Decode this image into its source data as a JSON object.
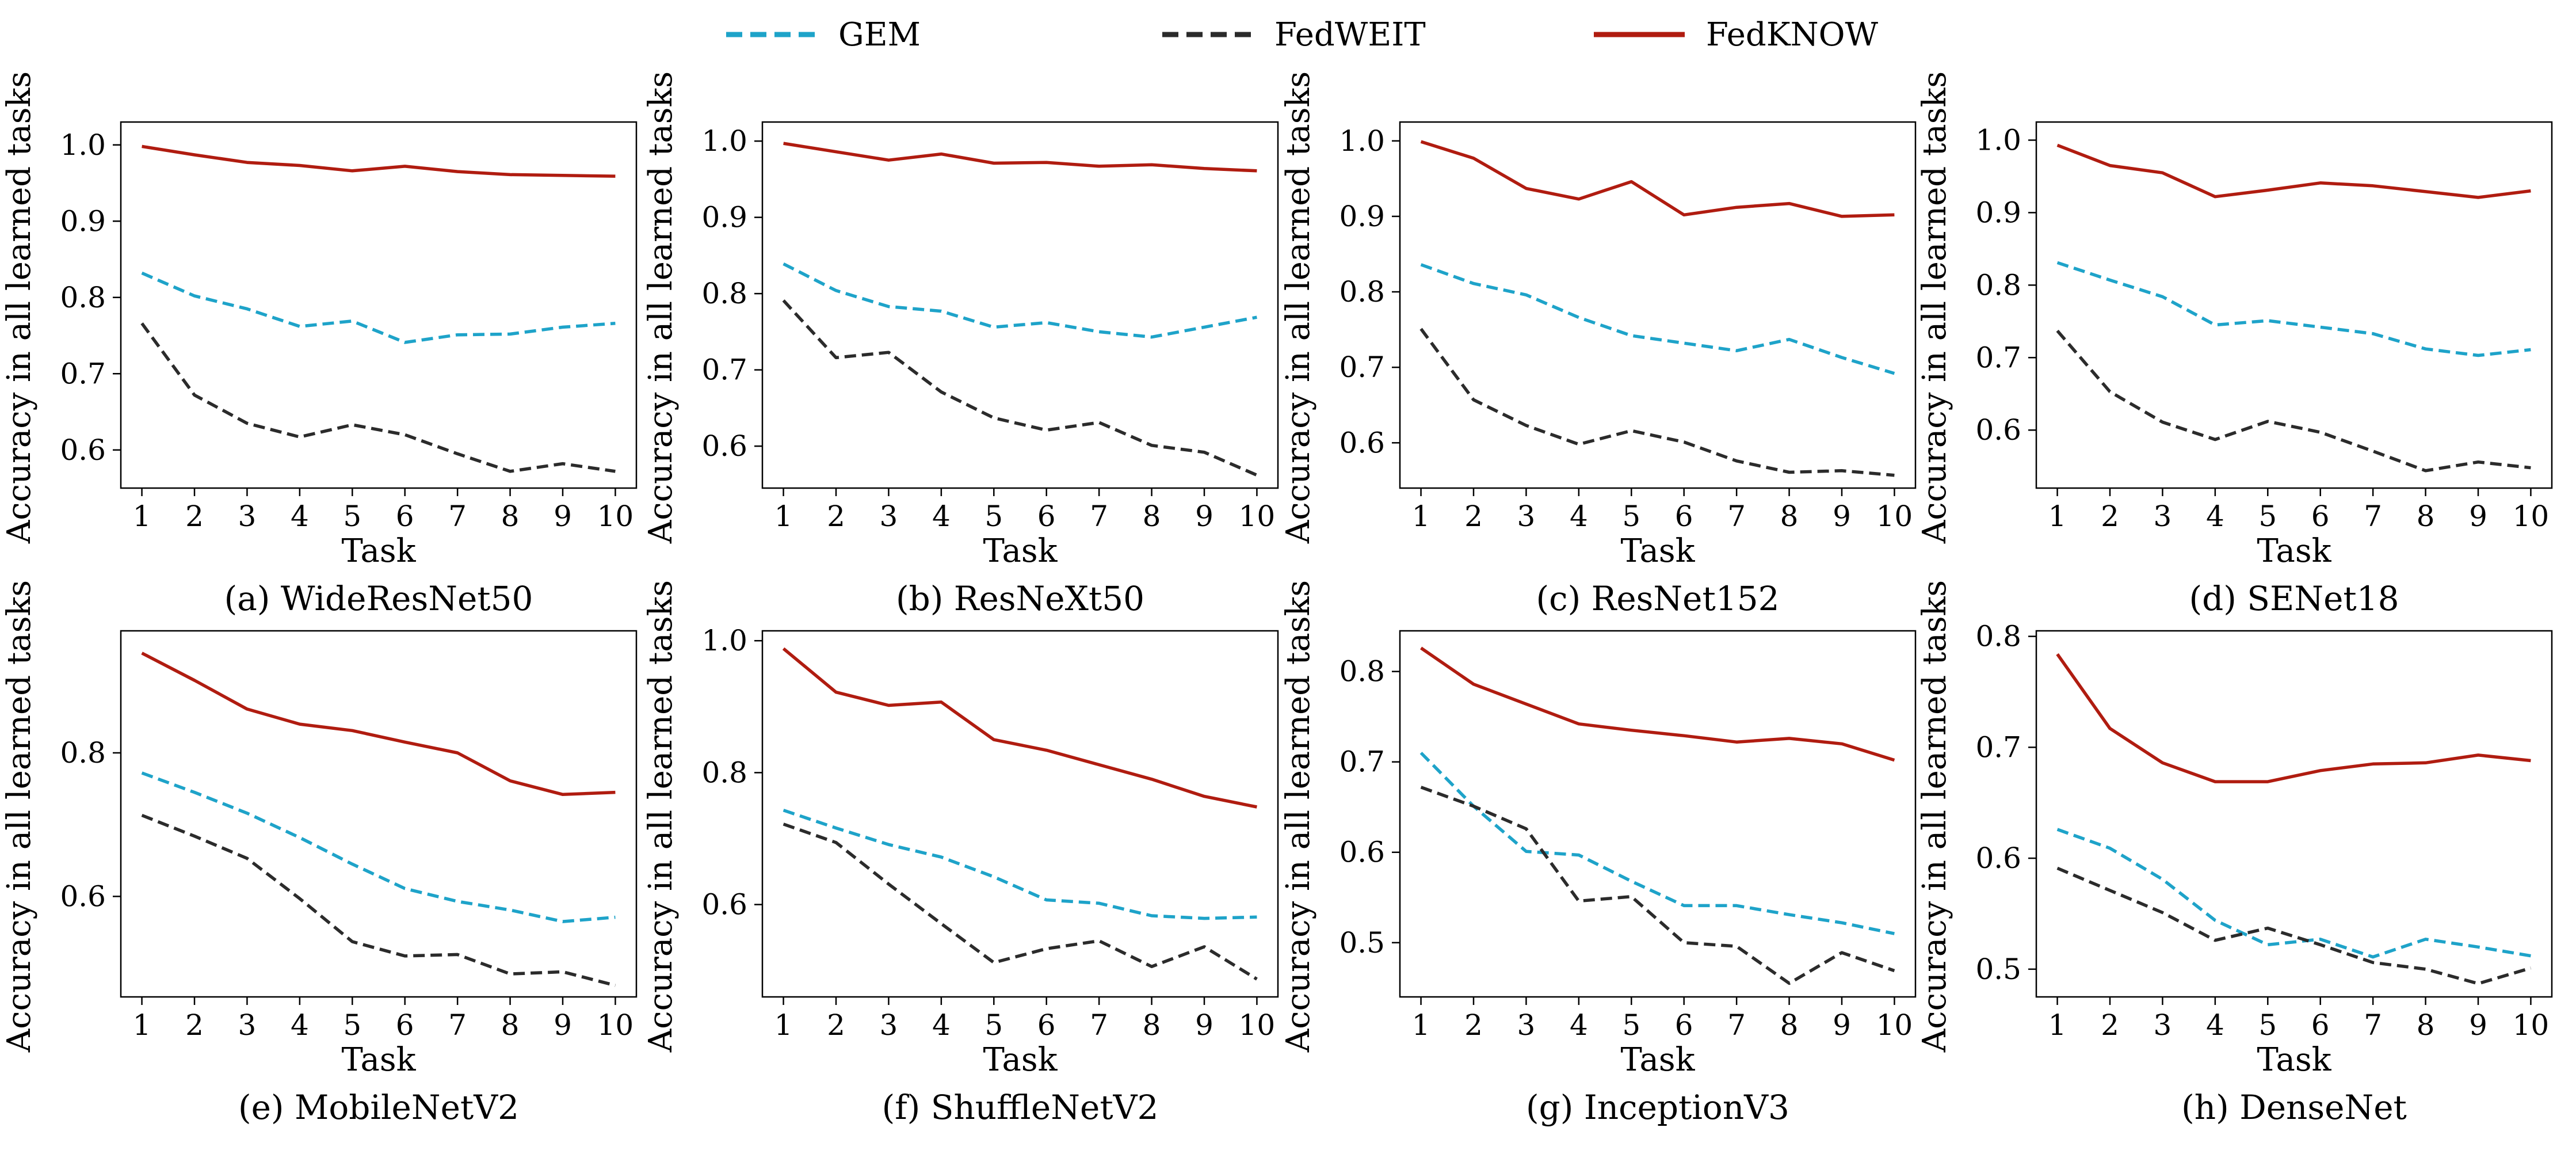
{
  "legend": [
    {
      "name": "GEM",
      "color": "#1ea3c9",
      "style": "dashed"
    },
    {
      "name": "FedWEIT",
      "color": "#2b2b2b",
      "style": "dashed"
    },
    {
      "name": "FedKNOW",
      "color": "#b01c10",
      "style": "solid"
    }
  ],
  "chart_data": [
    {
      "type": "line",
      "caption": "(a) WideResNet50",
      "xlabel": "Task",
      "ylabel": "Accuracy in all learned tasks",
      "x": [
        1,
        2,
        3,
        4,
        5,
        6,
        7,
        8,
        9,
        10
      ],
      "xlim": [
        0.6,
        10.4
      ],
      "ylim": [
        0.55,
        1.03
      ],
      "yticks": [
        0.6,
        0.7,
        0.8,
        0.9,
        1.0
      ],
      "series": [
        {
          "name": "GEM",
          "values": [
            0.832,
            0.802,
            0.785,
            0.762,
            0.769,
            0.741,
            0.751,
            0.752,
            0.761,
            0.766
          ]
        },
        {
          "name": "FedWEIT",
          "values": [
            0.766,
            0.672,
            0.635,
            0.617,
            0.633,
            0.62,
            0.595,
            0.572,
            0.582,
            0.572
          ]
        },
        {
          "name": "FedKNOW",
          "values": [
            0.998,
            0.987,
            0.977,
            0.973,
            0.966,
            0.972,
            0.965,
            0.961,
            0.96,
            0.959
          ]
        }
      ]
    },
    {
      "type": "line",
      "caption": "(b) ResNeXt50",
      "xlabel": "Task",
      "ylabel": "Accuracy in all learned tasks",
      "x": [
        1,
        2,
        3,
        4,
        5,
        6,
        7,
        8,
        9,
        10
      ],
      "xlim": [
        0.6,
        10.4
      ],
      "ylim": [
        0.545,
        1.025
      ],
      "yticks": [
        0.6,
        0.7,
        0.8,
        0.9,
        1.0
      ],
      "series": [
        {
          "name": "GEM",
          "values": [
            0.839,
            0.804,
            0.783,
            0.777,
            0.756,
            0.762,
            0.75,
            0.743,
            0.756,
            0.769
          ]
        },
        {
          "name": "FedWEIT",
          "values": [
            0.791,
            0.716,
            0.723,
            0.671,
            0.637,
            0.621,
            0.631,
            0.601,
            0.592,
            0.562
          ]
        },
        {
          "name": "FedKNOW",
          "values": [
            0.997,
            0.986,
            0.975,
            0.983,
            0.971,
            0.972,
            0.967,
            0.969,
            0.964,
            0.961
          ]
        }
      ]
    },
    {
      "type": "line",
      "caption": "(c) ResNet152",
      "xlabel": "Task",
      "ylabel": "Accuracy in all learned tasks",
      "x": [
        1,
        2,
        3,
        4,
        5,
        6,
        7,
        8,
        9,
        10
      ],
      "xlim": [
        0.6,
        10.4
      ],
      "ylim": [
        0.54,
        1.025
      ],
      "yticks": [
        0.6,
        0.7,
        0.8,
        0.9,
        1.0
      ],
      "series": [
        {
          "name": "GEM",
          "values": [
            0.836,
            0.811,
            0.796,
            0.766,
            0.742,
            0.732,
            0.722,
            0.737,
            0.713,
            0.692
          ]
        },
        {
          "name": "FedWEIT",
          "values": [
            0.751,
            0.657,
            0.623,
            0.598,
            0.616,
            0.601,
            0.576,
            0.561,
            0.563,
            0.557
          ]
        },
        {
          "name": "FedKNOW",
          "values": [
            0.999,
            0.977,
            0.937,
            0.923,
            0.946,
            0.902,
            0.912,
            0.917,
            0.9,
            0.902
          ]
        }
      ]
    },
    {
      "type": "line",
      "caption": "(d) SENet18",
      "xlabel": "Task",
      "ylabel": "Accuracy in all learned tasks",
      "x": [
        1,
        2,
        3,
        4,
        5,
        6,
        7,
        8,
        9,
        10
      ],
      "xlim": [
        0.6,
        10.4
      ],
      "ylim": [
        0.52,
        1.025
      ],
      "yticks": [
        0.6,
        0.7,
        0.8,
        0.9,
        1.0
      ],
      "series": [
        {
          "name": "GEM",
          "values": [
            0.831,
            0.807,
            0.784,
            0.745,
            0.751,
            0.742,
            0.733,
            0.712,
            0.703,
            0.711
          ]
        },
        {
          "name": "FedWEIT",
          "values": [
            0.737,
            0.653,
            0.611,
            0.587,
            0.612,
            0.597,
            0.571,
            0.544,
            0.556,
            0.548
          ]
        },
        {
          "name": "FedKNOW",
          "values": [
            0.993,
            0.965,
            0.955,
            0.922,
            0.931,
            0.941,
            0.937,
            0.929,
            0.921,
            0.93
          ]
        }
      ]
    },
    {
      "type": "line",
      "caption": "(e) MobileNetV2",
      "xlabel": "Task",
      "ylabel": "Accuracy in all learned tasks",
      "x": [
        1,
        2,
        3,
        4,
        5,
        6,
        7,
        8,
        9,
        10
      ],
      "xlim": [
        0.6,
        10.4
      ],
      "ylim": [
        0.46,
        0.97
      ],
      "yticks": [
        0.6,
        0.8
      ],
      "series": [
        {
          "name": "GEM",
          "values": [
            0.772,
            0.745,
            0.716,
            0.682,
            0.645,
            0.611,
            0.593,
            0.581,
            0.565,
            0.571
          ]
        },
        {
          "name": "FedWEIT",
          "values": [
            0.713,
            0.684,
            0.653,
            0.597,
            0.537,
            0.517,
            0.519,
            0.492,
            0.495,
            0.476
          ]
        },
        {
          "name": "FedKNOW",
          "values": [
            0.939,
            0.901,
            0.861,
            0.84,
            0.831,
            0.815,
            0.8,
            0.761,
            0.742,
            0.745
          ]
        }
      ]
    },
    {
      "type": "line",
      "caption": "(f) ShuffleNetV2",
      "xlabel": "Task",
      "ylabel": "Accuracy in all learned tasks",
      "x": [
        1,
        2,
        3,
        4,
        5,
        6,
        7,
        8,
        9,
        10
      ],
      "xlim": [
        0.6,
        10.4
      ],
      "ylim": [
        0.46,
        1.015
      ],
      "yticks": [
        0.6,
        0.8,
        1.0
      ],
      "series": [
        {
          "name": "GEM",
          "values": [
            0.743,
            0.716,
            0.691,
            0.672,
            0.642,
            0.607,
            0.602,
            0.583,
            0.579,
            0.581
          ]
        },
        {
          "name": "FedWEIT",
          "values": [
            0.722,
            0.694,
            0.631,
            0.571,
            0.512,
            0.533,
            0.545,
            0.506,
            0.536,
            0.487
          ]
        },
        {
          "name": "FedKNOW",
          "values": [
            0.988,
            0.922,
            0.902,
            0.907,
            0.85,
            0.834,
            0.812,
            0.79,
            0.764,
            0.748
          ]
        }
      ]
    },
    {
      "type": "line",
      "caption": "(g) InceptionV3",
      "xlabel": "Task",
      "ylabel": "Accuracy in all learned tasks",
      "x": [
        1,
        2,
        3,
        4,
        5,
        6,
        7,
        8,
        9,
        10
      ],
      "xlim": [
        0.6,
        10.4
      ],
      "ylim": [
        0.44,
        0.845
      ],
      "yticks": [
        0.5,
        0.6,
        0.7,
        0.8
      ],
      "series": [
        {
          "name": "GEM",
          "values": [
            0.71,
            0.651,
            0.601,
            0.597,
            0.568,
            0.541,
            0.541,
            0.531,
            0.522,
            0.51
          ]
        },
        {
          "name": "FedWEIT",
          "values": [
            0.672,
            0.651,
            0.626,
            0.546,
            0.551,
            0.5,
            0.496,
            0.455,
            0.489,
            0.469
          ]
        },
        {
          "name": "FedKNOW",
          "values": [
            0.826,
            0.786,
            0.764,
            0.742,
            0.735,
            0.729,
            0.722,
            0.726,
            0.72,
            0.702
          ]
        }
      ]
    },
    {
      "type": "line",
      "caption": "(h) DenseNet",
      "xlabel": "Task",
      "ylabel": "Accuracy in all learned tasks",
      "x": [
        1,
        2,
        3,
        4,
        5,
        6,
        7,
        8,
        9,
        10
      ],
      "xlim": [
        0.6,
        10.4
      ],
      "ylim": [
        0.475,
        0.805
      ],
      "yticks": [
        0.5,
        0.6,
        0.7,
        0.8
      ],
      "series": [
        {
          "name": "GEM",
          "values": [
            0.626,
            0.609,
            0.581,
            0.544,
            0.522,
            0.527,
            0.511,
            0.527,
            0.52,
            0.512
          ]
        },
        {
          "name": "FedWEIT",
          "values": [
            0.591,
            0.571,
            0.551,
            0.526,
            0.537,
            0.522,
            0.506,
            0.5,
            0.487,
            0.501
          ]
        },
        {
          "name": "FedKNOW",
          "values": [
            0.784,
            0.717,
            0.686,
            0.669,
            0.669,
            0.679,
            0.685,
            0.686,
            0.693,
            0.688
          ]
        }
      ]
    }
  ]
}
